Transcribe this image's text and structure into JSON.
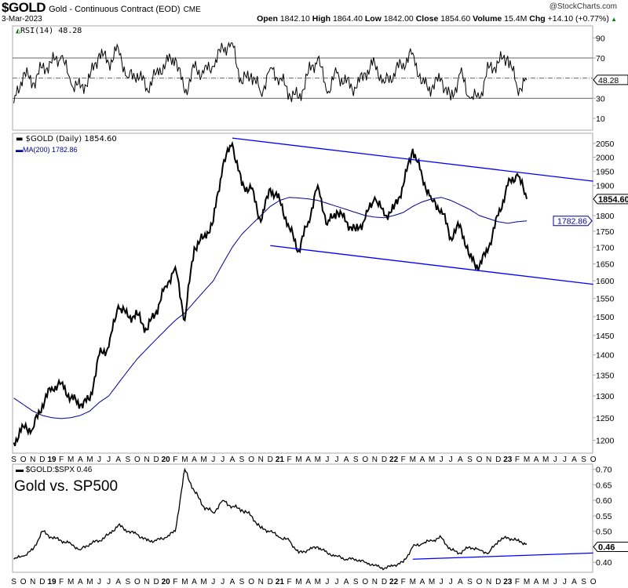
{
  "header": {
    "symbol": "$GOLD",
    "name": "Gold - Continuous Contract (EOD)",
    "exchange": "CME",
    "date": "3-Mar-2023",
    "watermark": "@StockCharts.com",
    "open_label": "Open",
    "open": "1842.10",
    "high_label": "High",
    "high": "1864.40",
    "low_label": "Low",
    "low": "1842.00",
    "close_label": "Close",
    "close": "1854.60",
    "volume_label": "Volume",
    "volume": "15.4M",
    "chg_label": "Chg",
    "chg": "+14.10 (+0.77%)"
  },
  "chart_data": [
    {
      "type": "line",
      "title": "RSI(14) 48.28",
      "legend": "RSI(14) 48.28",
      "current": 48.28,
      "current_label": "48.28",
      "ylim": [
        0,
        100
      ],
      "yticks": [
        "90",
        "70",
        "30",
        "10"
      ],
      "ytick_values": [
        90,
        70,
        30,
        10
      ],
      "overbought": 70,
      "oversold": 30,
      "values": [
        25,
        55,
        45,
        60,
        65,
        72,
        45,
        40,
        50,
        75,
        65,
        80,
        50,
        55,
        40,
        55,
        65,
        70,
        35,
        60,
        55,
        62,
        80,
        85,
        45,
        55,
        35,
        60,
        50,
        35,
        30,
        55,
        70,
        35,
        55,
        45,
        40,
        55,
        65,
        45,
        55,
        65,
        75,
        45,
        40,
        50,
        28,
        55,
        30,
        30,
        60,
        65,
        72,
        40,
        48.28
      ]
    },
    {
      "type": "line",
      "title": "$GOLD (Daily) 1854.60",
      "scale": "log",
      "series": [
        {
          "name": "$GOLD (Daily) 1854.60",
          "color": "#000000",
          "current_label": "1854.60",
          "values": [
            1195,
            1230,
            1225,
            1280,
            1320,
            1330,
            1295,
            1280,
            1290,
            1400,
            1420,
            1530,
            1500,
            1505,
            1465,
            1515,
            1585,
            1640,
            1490,
            1700,
            1730,
            1780,
            1970,
            2050,
            1900,
            1890,
            1780,
            1890,
            1850,
            1760,
            1690,
            1780,
            1900,
            1770,
            1815,
            1780,
            1750,
            1790,
            1860,
            1800,
            1820,
            1900,
            2030,
            1930,
            1850,
            1820,
            1730,
            1770,
            1670,
            1640,
            1700,
            1800,
            1900,
            1940,
            1854.6
          ]
        },
        {
          "name": "MA(200) 1782.86",
          "color": "#000099",
          "current_label": "1782.86",
          "values": [
            1295,
            1280,
            1265,
            1255,
            1250,
            1248,
            1250,
            1255,
            1265,
            1285,
            1300,
            1330,
            1360,
            1390,
            1415,
            1440,
            1465,
            1490,
            1510,
            1540,
            1570,
            1600,
            1650,
            1700,
            1740,
            1770,
            1800,
            1830,
            1850,
            1860,
            1858,
            1855,
            1850,
            1840,
            1830,
            1820,
            1810,
            1800,
            1795,
            1793,
            1800,
            1810,
            1830,
            1845,
            1855,
            1860,
            1850,
            1835,
            1820,
            1800,
            1790,
            1780,
            1775,
            1780,
            1782.86
          ]
        }
      ],
      "trendlines": [
        {
          "from": [
            "2020-08",
            2070
          ],
          "to": [
            "2023-10",
            1915
          ]
        },
        {
          "from": [
            "2020-12",
            1705
          ],
          "to": [
            "2023-10",
            1590
          ]
        }
      ],
      "ylim": [
        1180,
        2080
      ],
      "yticks": [
        "2050",
        "2000",
        "1950",
        "1900",
        "1800",
        "1750",
        "1700",
        "1650",
        "1600",
        "1550",
        "1500",
        "1450",
        "1400",
        "1350",
        "1300",
        "1250",
        "1200"
      ],
      "ytick_values": [
        2050,
        2000,
        1950,
        1900,
        1800,
        1750,
        1700,
        1650,
        1600,
        1550,
        1500,
        1450,
        1400,
        1350,
        1300,
        1250,
        1200
      ]
    },
    {
      "type": "line",
      "title": "$GOLD:$SPX 0.46",
      "legend": "$GOLD:$SPX 0.46",
      "annotation": "Gold vs. SP500",
      "current_label": "0.46",
      "values": [
        0.41,
        0.42,
        0.44,
        0.5,
        0.48,
        0.47,
        0.46,
        0.44,
        0.46,
        0.47,
        0.49,
        0.52,
        0.5,
        0.49,
        0.47,
        0.47,
        0.48,
        0.5,
        0.7,
        0.63,
        0.58,
        0.56,
        0.6,
        0.58,
        0.57,
        0.55,
        0.51,
        0.5,
        0.48,
        0.47,
        0.43,
        0.44,
        0.45,
        0.43,
        0.42,
        0.41,
        0.41,
        0.4,
        0.39,
        0.38,
        0.39,
        0.4,
        0.45,
        0.46,
        0.47,
        0.48,
        0.44,
        0.43,
        0.45,
        0.44,
        0.43,
        0.47,
        0.48,
        0.47,
        0.46
      ],
      "trendline": {
        "from": [
          "2022-03",
          0.41
        ],
        "to": [
          "2023-10",
          0.43
        ]
      },
      "ylim": [
        0.37,
        0.72
      ],
      "yticks": [
        "0.70",
        "0.65",
        "0.60",
        "0.55",
        "0.50",
        "0.40"
      ],
      "ytick_values": [
        0.7,
        0.65,
        0.6,
        0.55,
        0.5,
        0.4
      ]
    }
  ],
  "x_axis": {
    "start": "2018-09",
    "labels": [
      "S",
      "O",
      "N",
      "D",
      "19",
      "F",
      "M",
      "A",
      "M",
      "J",
      "J",
      "A",
      "S",
      "O",
      "N",
      "D",
      "20",
      "F",
      "M",
      "A",
      "M",
      "J",
      "J",
      "A",
      "S",
      "O",
      "N",
      "D",
      "21",
      "F",
      "M",
      "A",
      "M",
      "J",
      "J",
      "A",
      "S",
      "O",
      "N",
      "D",
      "22",
      "F",
      "M",
      "A",
      "M",
      "J",
      "J",
      "A",
      "S",
      "O",
      "N",
      "D",
      "23",
      "F",
      "M",
      "A",
      "M",
      "J",
      "J",
      "A",
      "S",
      "O"
    ]
  },
  "colors": {
    "trend": "#0000ff",
    "ma": "#000099",
    "grid": "#aaaaaa"
  }
}
